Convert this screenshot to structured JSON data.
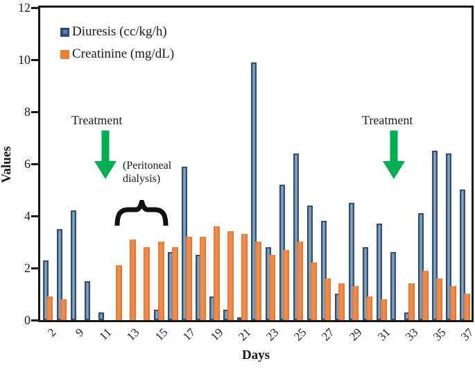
{
  "chart_data": {
    "type": "bar",
    "title": "",
    "xlabel": "Days",
    "ylabel": "Values",
    "ylim": [
      0,
      12
    ],
    "yticks": [
      0,
      2,
      4,
      6,
      8,
      10,
      12
    ],
    "grid": false,
    "legend_position": "top-left-inside",
    "categories": [
      "2",
      "",
      "9",
      "",
      "11",
      "",
      "13",
      "",
      "15",
      "",
      "17",
      "",
      "19",
      "",
      "21",
      "",
      "23",
      "",
      "25",
      "",
      "27",
      "",
      "29",
      "",
      "31",
      "",
      "33",
      "",
      "35",
      "",
      "37"
    ],
    "series": [
      {
        "name": "Diuresis (cc/kg/h)",
        "fill": "#4e79a7",
        "border": "#3b4f69",
        "values": [
          2.3,
          3.5,
          4.2,
          1.5,
          0.3,
          0,
          0,
          0,
          0.4,
          2.6,
          5.9,
          2.5,
          0.9,
          0.4,
          0.1,
          9.9,
          2.8,
          5.2,
          6.4,
          4.4,
          3.8,
          1.0,
          4.5,
          2.8,
          3.7,
          2.6,
          0.3,
          4.1,
          6.5,
          6.4,
          5.0
        ]
      },
      {
        "name": "Creatinine (mg/dL)",
        "fill": "#ed7d31",
        "values": [
          0.9,
          0.8,
          0,
          0,
          0,
          2.1,
          3.1,
          2.8,
          3.0,
          2.8,
          3.2,
          3.2,
          3.6,
          3.4,
          3.3,
          3.0,
          2.5,
          2.7,
          3.0,
          2.2,
          1.6,
          1.4,
          1.3,
          0.9,
          0.8,
          0,
          1.4,
          1.9,
          1.6,
          1.3,
          1.0
        ]
      }
    ],
    "annotations": {
      "treatment_left": "Treatment",
      "treatment_right": "Treatment",
      "peritoneal_note": "(Peritoneal dialysis)",
      "arrow_color": "#00b050",
      "axis_color": "#161616"
    }
  }
}
